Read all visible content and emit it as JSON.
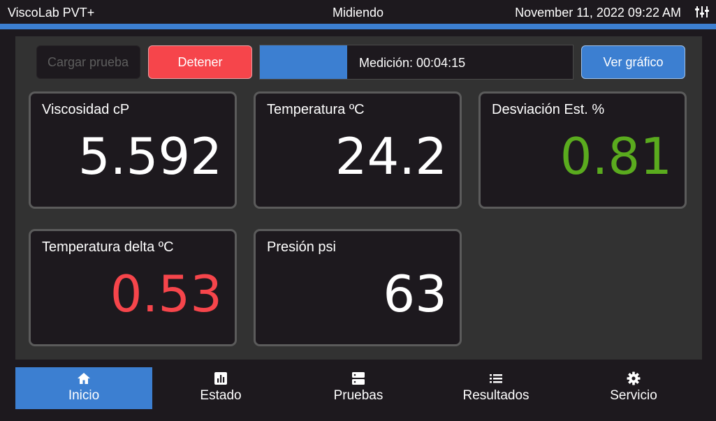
{
  "header": {
    "app_title": "ViscoLab PVT+",
    "status": "Midiendo",
    "datetime": "November 11, 2022 09:22 AM",
    "menu_icon": "equalizer-icon"
  },
  "toolbar": {
    "load_test_placeholder": "Cargar prueba",
    "stop_label": "Detener",
    "progress_label": "Medición: 00:04:15",
    "progress_fraction": 0.28,
    "chart_label": "Ver gráfico"
  },
  "metrics": [
    {
      "label": "Viscosidad  cP",
      "value": "5.592",
      "color": "#ffffff"
    },
    {
      "label": "Temperatura  ºC",
      "value": "24.2",
      "color": "#ffffff"
    },
    {
      "label": "Desviación Est.  %",
      "value": "0.81",
      "color": "#5aab1e"
    },
    {
      "label": "Temperatura delta  ºC",
      "value": "0.53",
      "color": "#f6454b"
    },
    {
      "label": "Presión  psi",
      "value": "63",
      "color": "#ffffff"
    }
  ],
  "nav": [
    {
      "label": "Inicio",
      "icon": "home-icon",
      "active": true
    },
    {
      "label": "Estado",
      "icon": "bar-chart-icon",
      "active": false
    },
    {
      "label": "Pruebas",
      "icon": "server-icon",
      "active": false
    },
    {
      "label": "Resultados",
      "icon": "list-icon",
      "active": false
    },
    {
      "label": "Servicio",
      "icon": "gear-icon",
      "active": false
    }
  ],
  "colors": {
    "accent": "#3c7fd1",
    "danger": "#f6454b",
    "success": "#5aab1e",
    "background": "#1d191e",
    "panel": "#323232"
  }
}
